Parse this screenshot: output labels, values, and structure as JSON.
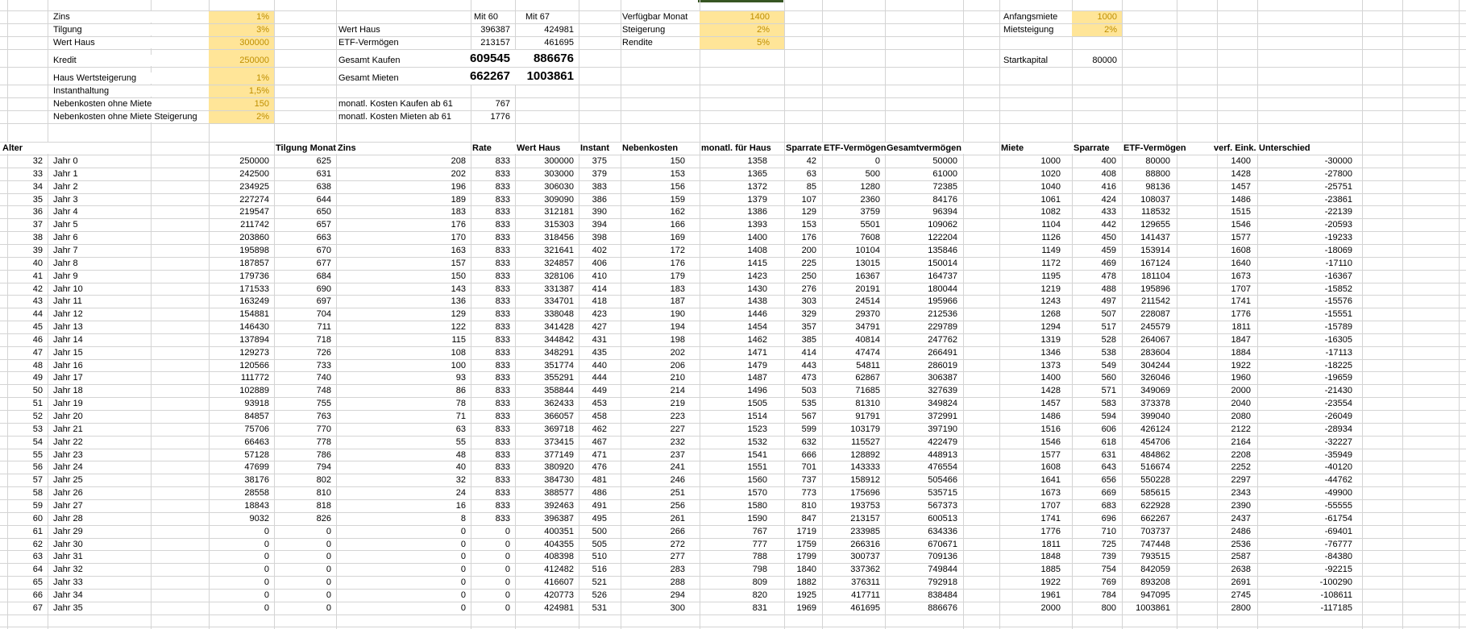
{
  "sheet": {
    "top_left": {
      "rows": [
        {
          "label": "Zins",
          "value": "1%"
        },
        {
          "label": "Tilgung",
          "value": "3%"
        },
        {
          "label": "Wert Haus",
          "value": "300000"
        },
        {
          "label": "Kredit",
          "value": "250000"
        },
        {
          "label": "Haus Wertsteigerung",
          "value": "1%"
        },
        {
          "label": "Instanthaltung",
          "value": "1,5%"
        },
        {
          "label": "Nebenkosten ohne Miete",
          "value": "150"
        },
        {
          "label": "Nebenkosten ohne Miete Steigerung",
          "value": "2%"
        }
      ]
    },
    "top_mid": {
      "col60": "Mit 60",
      "col67": "Mit 67",
      "rows": [
        {
          "label": "Wert Haus",
          "v60": "396387",
          "v67": "424981"
        },
        {
          "label": "ETF-Vermögen",
          "v60": "213157",
          "v67": "461695"
        },
        {
          "label": "Gesamt Kaufen",
          "v60": "609545",
          "v67": "886676"
        },
        {
          "label": "Gesamt Mieten",
          "v60": "662267",
          "v67": "1003861"
        },
        {
          "label": "monatl. Kosten Kaufen ab 61",
          "v60": "767",
          "v67": ""
        },
        {
          "label": "monatl. Kosten Mieten ab 61",
          "v60": "1776",
          "v67": ""
        }
      ]
    },
    "top_right": {
      "rows": [
        {
          "label": "Verfügbar Monat",
          "value": "1400"
        },
        {
          "label": "Steigerung",
          "value": "2%"
        },
        {
          "label": "Rendite",
          "value": "5%"
        }
      ]
    },
    "far_right": {
      "rows": [
        {
          "label": "Anfangsmiete",
          "value": "1000"
        },
        {
          "label": "Mietsteigung",
          "value": "2%"
        },
        {
          "label": "Startkapital",
          "value": "80000"
        }
      ]
    },
    "table": {
      "headers": {
        "alter": "Alter",
        "tilgung": "Tilgung Monat",
        "zins": "Zins",
        "rate": "Rate",
        "wert": "Wert Haus",
        "instant": "Instant",
        "neben": "Nebenkosten",
        "monatl": "monatl. für Haus",
        "spar1": "Sparrate",
        "etf1": "ETF-Vermögen",
        "gesamt": "Gesamtvermögen",
        "miete": "Miete",
        "spar2": "Sparrate",
        "etf2": "ETF-Vermögen",
        "verf": "verf. Eink.",
        "unt": "Unterschied"
      },
      "rows": [
        [
          32,
          "Jahr 0",
          250000,
          625,
          208,
          833,
          300000,
          375,
          150,
          1358,
          42,
          0,
          50000,
          1000,
          400,
          80000,
          1400,
          -30000
        ],
        [
          33,
          "Jahr 1",
          242500,
          631,
          202,
          833,
          303000,
          379,
          153,
          1365,
          63,
          500,
          61000,
          1020,
          408,
          88800,
          1428,
          -27800
        ],
        [
          34,
          "Jahr 2",
          234925,
          638,
          196,
          833,
          306030,
          383,
          156,
          1372,
          85,
          1280,
          72385,
          1040,
          416,
          98136,
          1457,
          -25751
        ],
        [
          35,
          "Jahr 3",
          227274,
          644,
          189,
          833,
          309090,
          386,
          159,
          1379,
          107,
          2360,
          84176,
          1061,
          424,
          108037,
          1486,
          -23861
        ],
        [
          36,
          "Jahr 4",
          219547,
          650,
          183,
          833,
          312181,
          390,
          162,
          1386,
          129,
          3759,
          96394,
          1082,
          433,
          118532,
          1515,
          -22139
        ],
        [
          37,
          "Jahr 5",
          211742,
          657,
          176,
          833,
          315303,
          394,
          166,
          1393,
          153,
          5501,
          109062,
          1104,
          442,
          129655,
          1546,
          -20593
        ],
        [
          38,
          "Jahr 6",
          203860,
          663,
          170,
          833,
          318456,
          398,
          169,
          1400,
          176,
          7608,
          122204,
          1126,
          450,
          141437,
          1577,
          -19233
        ],
        [
          39,
          "Jahr 7",
          195898,
          670,
          163,
          833,
          321641,
          402,
          172,
          1408,
          200,
          10104,
          135846,
          1149,
          459,
          153914,
          1608,
          -18069
        ],
        [
          40,
          "Jahr 8",
          187857,
          677,
          157,
          833,
          324857,
          406,
          176,
          1415,
          225,
          13015,
          150014,
          1172,
          469,
          167124,
          1640,
          -17110
        ],
        [
          41,
          "Jahr 9",
          179736,
          684,
          150,
          833,
          328106,
          410,
          179,
          1423,
          250,
          16367,
          164737,
          1195,
          478,
          181104,
          1673,
          -16367
        ],
        [
          42,
          "Jahr 10",
          171533,
          690,
          143,
          833,
          331387,
          414,
          183,
          1430,
          276,
          20191,
          180044,
          1219,
          488,
          195896,
          1707,
          -15852
        ],
        [
          43,
          "Jahr 11",
          163249,
          697,
          136,
          833,
          334701,
          418,
          187,
          1438,
          303,
          24514,
          195966,
          1243,
          497,
          211542,
          1741,
          -15576
        ],
        [
          44,
          "Jahr 12",
          154881,
          704,
          129,
          833,
          338048,
          423,
          190,
          1446,
          329,
          29370,
          212536,
          1268,
          507,
          228087,
          1776,
          -15551
        ],
        [
          45,
          "Jahr 13",
          146430,
          711,
          122,
          833,
          341428,
          427,
          194,
          1454,
          357,
          34791,
          229789,
          1294,
          517,
          245579,
          1811,
          -15789
        ],
        [
          46,
          "Jahr 14",
          137894,
          718,
          115,
          833,
          344842,
          431,
          198,
          1462,
          385,
          40814,
          247762,
          1319,
          528,
          264067,
          1847,
          -16305
        ],
        [
          47,
          "Jahr 15",
          129273,
          726,
          108,
          833,
          348291,
          435,
          202,
          1471,
          414,
          47474,
          266491,
          1346,
          538,
          283604,
          1884,
          -17113
        ],
        [
          48,
          "Jahr 16",
          120566,
          733,
          100,
          833,
          351774,
          440,
          206,
          1479,
          443,
          54811,
          286019,
          1373,
          549,
          304244,
          1922,
          -18225
        ],
        [
          49,
          "Jahr 17",
          111772,
          740,
          93,
          833,
          355291,
          444,
          210,
          1487,
          473,
          62867,
          306387,
          1400,
          560,
          326046,
          1960,
          -19659
        ],
        [
          50,
          "Jahr 18",
          102889,
          748,
          86,
          833,
          358844,
          449,
          214,
          1496,
          503,
          71685,
          327639,
          1428,
          571,
          349069,
          2000,
          -21430
        ],
        [
          51,
          "Jahr 19",
          93918,
          755,
          78,
          833,
          362433,
          453,
          219,
          1505,
          535,
          81310,
          349824,
          1457,
          583,
          373378,
          2040,
          -23554
        ],
        [
          52,
          "Jahr 20",
          84857,
          763,
          71,
          833,
          366057,
          458,
          223,
          1514,
          567,
          91791,
          372991,
          1486,
          594,
          399040,
          2080,
          -26049
        ],
        [
          53,
          "Jahr 21",
          75706,
          770,
          63,
          833,
          369718,
          462,
          227,
          1523,
          599,
          103179,
          397190,
          1516,
          606,
          426124,
          2122,
          -28934
        ],
        [
          54,
          "Jahr 22",
          66463,
          778,
          55,
          833,
          373415,
          467,
          232,
          1532,
          632,
          115527,
          422479,
          1546,
          618,
          454706,
          2164,
          -32227
        ],
        [
          55,
          "Jahr 23",
          57128,
          786,
          48,
          833,
          377149,
          471,
          237,
          1541,
          666,
          128892,
          448913,
          1577,
          631,
          484862,
          2208,
          -35949
        ],
        [
          56,
          "Jahr 24",
          47699,
          794,
          40,
          833,
          380920,
          476,
          241,
          1551,
          701,
          143333,
          476554,
          1608,
          643,
          516674,
          2252,
          -40120
        ],
        [
          57,
          "Jahr 25",
          38176,
          802,
          32,
          833,
          384730,
          481,
          246,
          1560,
          737,
          158912,
          505466,
          1641,
          656,
          550228,
          2297,
          -44762
        ],
        [
          58,
          "Jahr 26",
          28558,
          810,
          24,
          833,
          388577,
          486,
          251,
          1570,
          773,
          175696,
          535715,
          1673,
          669,
          585615,
          2343,
          -49900
        ],
        [
          59,
          "Jahr 27",
          18843,
          818,
          16,
          833,
          392463,
          491,
          256,
          1580,
          810,
          193753,
          567373,
          1707,
          683,
          622928,
          2390,
          -55555
        ],
        [
          60,
          "Jahr 28",
          9032,
          826,
          8,
          833,
          396387,
          495,
          261,
          1590,
          847,
          213157,
          600513,
          1741,
          696,
          662267,
          2437,
          -61754
        ],
        [
          61,
          "Jahr 29",
          0,
          0,
          0,
          0,
          400351,
          500,
          266,
          767,
          1719,
          233985,
          634336,
          1776,
          710,
          703737,
          2486,
          -69401
        ],
        [
          62,
          "Jahr 30",
          0,
          0,
          0,
          0,
          404355,
          505,
          272,
          777,
          1759,
          266316,
          670671,
          1811,
          725,
          747448,
          2536,
          -76777
        ],
        [
          63,
          "Jahr 31",
          0,
          0,
          0,
          0,
          408398,
          510,
          277,
          788,
          1799,
          300737,
          709136,
          1848,
          739,
          793515,
          2587,
          -84380
        ],
        [
          64,
          "Jahr 32",
          0,
          0,
          0,
          0,
          412482,
          516,
          283,
          798,
          1840,
          337362,
          749844,
          1885,
          754,
          842059,
          2638,
          -92215
        ],
        [
          65,
          "Jahr 33",
          0,
          0,
          0,
          0,
          416607,
          521,
          288,
          809,
          1882,
          376311,
          792918,
          1922,
          769,
          893208,
          2691,
          -100290
        ],
        [
          66,
          "Jahr 34",
          0,
          0,
          0,
          0,
          420773,
          526,
          294,
          820,
          1925,
          417711,
          838484,
          1961,
          784,
          947095,
          2745,
          -108611
        ],
        [
          67,
          "Jahr 35",
          0,
          0,
          0,
          0,
          424981,
          531,
          300,
          831,
          1969,
          461695,
          886676,
          2000,
          800,
          1003861,
          2800,
          -117185
        ]
      ]
    }
  },
  "colors": {
    "highlight_bg": "#FFE598",
    "highlight_text": "#BF8F00",
    "grid": "#D4D4D4",
    "text": "#000000",
    "accent_strip": "#375623"
  }
}
